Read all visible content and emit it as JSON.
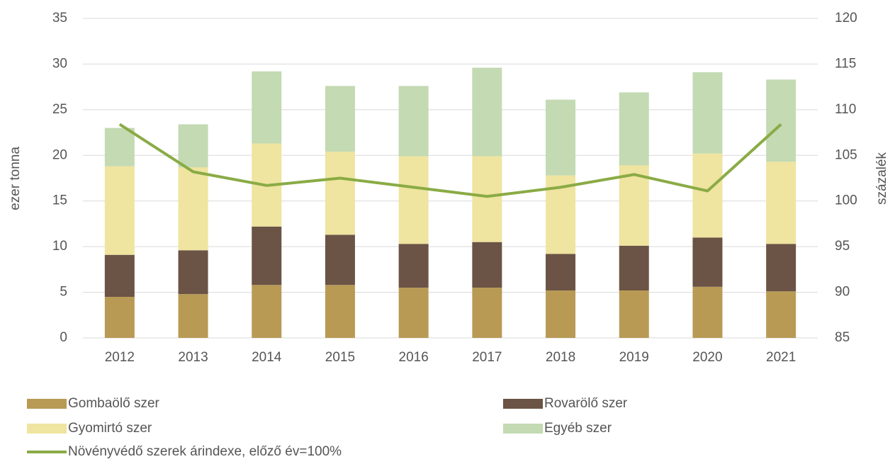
{
  "chart_data": {
    "type": "bar",
    "stacked": true,
    "categories": [
      "2012",
      "2013",
      "2014",
      "2015",
      "2016",
      "2017",
      "2018",
      "2019",
      "2020",
      "2021"
    ],
    "series": [
      {
        "name": "Gombaölő szer",
        "color": "#b89a55",
        "values": [
          4.5,
          4.8,
          5.8,
          5.8,
          5.5,
          5.5,
          5.2,
          5.2,
          5.6,
          5.1
        ]
      },
      {
        "name": "Rovarölő szer",
        "color": "#6b5445",
        "values": [
          4.6,
          4.8,
          6.4,
          5.5,
          4.8,
          5.0,
          4.0,
          4.9,
          5.4,
          5.2
        ]
      },
      {
        "name": "Gyomirtó szer",
        "color": "#efe4a0",
        "values": [
          9.7,
          9.1,
          9.1,
          9.1,
          9.6,
          9.4,
          8.6,
          8.8,
          9.2,
          9.0
        ]
      },
      {
        "name": "Egyéb szer",
        "color": "#c3dab3",
        "values": [
          4.2,
          4.7,
          7.9,
          7.2,
          7.7,
          9.7,
          8.3,
          8.0,
          8.9,
          9.0
        ]
      },
      {
        "name": "Növényvédő szerek árindexe, előző év=100%",
        "color": "#8aab45",
        "type": "line",
        "axis": "y2",
        "values": [
          108.4,
          103.2,
          101.7,
          102.5,
          101.5,
          100.5,
          101.5,
          102.9,
          101.1,
          108.4
        ]
      }
    ],
    "y_label": "ezer tonna",
    "y2_label": "százalék",
    "ylim": [
      0,
      35
    ],
    "yticks": [
      0,
      5,
      10,
      15,
      20,
      25,
      30,
      35
    ],
    "y2lim": [
      85,
      120
    ],
    "y2ticks": [
      85,
      90,
      95,
      100,
      105,
      110,
      115,
      120
    ],
    "grid": true,
    "legend": "bottom"
  }
}
